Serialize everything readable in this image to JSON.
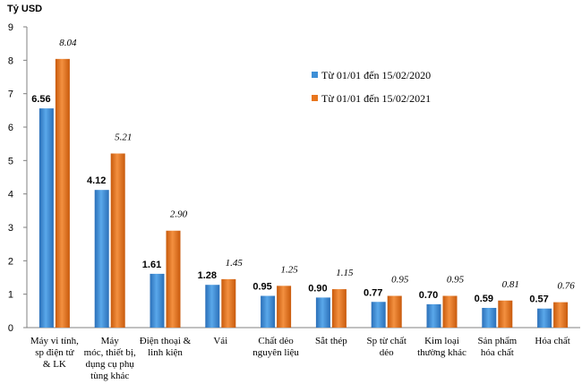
{
  "chart_data": {
    "type": "bar",
    "title": "",
    "ylabel": "Tỷ USD",
    "xlabel": "",
    "ylim": [
      0,
      9
    ],
    "yticks": [
      0,
      1,
      2,
      3,
      4,
      5,
      6,
      7,
      8,
      9
    ],
    "grid": false,
    "legend_position": "top-right",
    "categories": [
      [
        "Máy vi tính,",
        "sp điện tử",
        "& LK"
      ],
      [
        "Máy",
        "móc, thiết bị,",
        "dụng cụ phụ",
        "tùng khác"
      ],
      [
        "Điện thoại &",
        "linh kiện"
      ],
      [
        "Vải"
      ],
      [
        "Chất dẻo",
        "nguyên liệu"
      ],
      [
        "Sắt thép"
      ],
      [
        "Sp từ chất",
        "dẻo"
      ],
      [
        "Kim loại",
        "thường khác"
      ],
      [
        "Sản phẩm",
        "hóa chất"
      ],
      [
        "Hóa chất"
      ]
    ],
    "series": [
      {
        "name": "Từ 01/01 đến 15/02/2020",
        "color": "#3d8fd6",
        "values": [
          6.56,
          4.12,
          1.61,
          1.28,
          0.95,
          0.9,
          0.77,
          0.7,
          0.59,
          0.57
        ],
        "labels": [
          "6.56",
          "4.12",
          "1.61",
          "1.28",
          "0.95",
          "0.90",
          "0.77",
          "0.70",
          "0.59",
          "0.57"
        ]
      },
      {
        "name": "Từ 01/01 đến 15/02/2021",
        "color": "#e8751d",
        "values": [
          8.04,
          5.21,
          2.9,
          1.45,
          1.25,
          1.15,
          0.95,
          0.95,
          0.81,
          0.76
        ],
        "labels": [
          "8.04",
          "5.21",
          "2.90",
          "1.45",
          "1.25",
          "1.15",
          "0.95",
          "0.95",
          "0.81",
          "0.76"
        ]
      }
    ]
  }
}
